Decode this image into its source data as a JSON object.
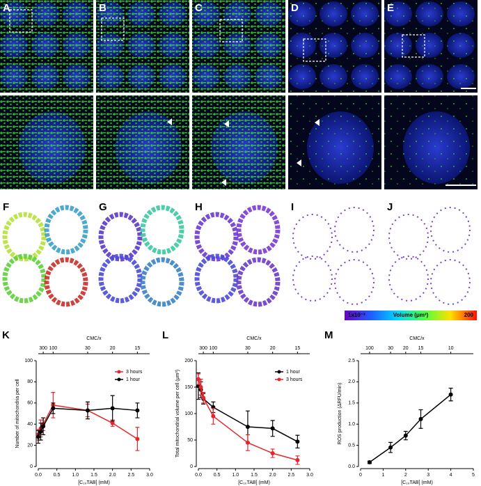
{
  "panel_labels": [
    "A",
    "B",
    "C",
    "D",
    "E",
    "F",
    "G",
    "H",
    "I",
    "J"
  ],
  "colorbar": {
    "min_label": "1x10⁻³",
    "label": "Volume (μm³)",
    "max_label": "200"
  },
  "chart_data": [
    {
      "type": "line",
      "panel": "K",
      "x_label": "[C₁₀TAB] (mM)",
      "y_label": "Number of mitochondria per cell",
      "x2_label": "CMC/x",
      "x": [
        0,
        0.067,
        0.133,
        0.4,
        1.33,
        2.0,
        2.67
      ],
      "series": [
        {
          "name": "3 hours",
          "color": "#e8262a",
          "values": [
            30,
            36,
            40,
            58,
            53,
            41,
            26
          ],
          "errors": [
            5,
            8,
            6,
            12,
            6,
            3,
            11
          ]
        },
        {
          "name": "1 hour",
          "color": "#000000",
          "values": [
            28,
            33,
            38,
            55,
            53,
            55,
            53
          ],
          "errors": [
            6,
            8,
            8,
            5,
            8,
            12,
            7
          ]
        }
      ],
      "xlim": [
        0,
        3
      ],
      "xticks": [
        {
          "value": 0,
          "label": "0.0"
        },
        0.5,
        {
          "value": 1,
          "label": "1.0"
        },
        1.5,
        {
          "value": 2,
          "label": "2.0"
        },
        2.5,
        {
          "value": 3,
          "label": "3.0"
        }
      ],
      "ylim": [
        0,
        100
      ],
      "yticks": [
        0,
        20,
        40,
        60,
        80,
        100
      ],
      "x2ticks": [
        {
          "value": 0.133,
          "label": "300"
        },
        {
          "value": 0.4,
          "label": "100"
        },
        {
          "value": 1.33,
          "label": "30"
        },
        {
          "value": 2.0,
          "label": "20"
        },
        {
          "value": 2.67,
          "label": "15"
        }
      ],
      "legend": "upper right"
    },
    {
      "type": "line",
      "panel": "L",
      "x_label": "[C₁₀TAB] (mM)",
      "y_label": "Total mitochondrial volume per cell (μm³)",
      "x2_label": "CMC/x",
      "x": [
        0,
        0.067,
        0.133,
        0.4,
        1.33,
        2.0,
        2.67
      ],
      "series": [
        {
          "name": "1 hour",
          "color": "#000000",
          "values": [
            152,
            145,
            128,
            112,
            75,
            72,
            47
          ],
          "errors": [
            25,
            15,
            10,
            10,
            30,
            15,
            12
          ]
        },
        {
          "name": "3 hours",
          "color": "#e8262a",
          "values": [
            165,
            150,
            130,
            95,
            45,
            25,
            12
          ],
          "errors": [
            10,
            15,
            10,
            15,
            15,
            8,
            8
          ]
        }
      ],
      "xlim": [
        0,
        3
      ],
      "xticks": [
        {
          "value": 0,
          "label": "0.0"
        },
        0.5,
        {
          "value": 1,
          "label": "1.0"
        },
        1.5,
        {
          "value": 2,
          "label": "2.0"
        },
        2.5,
        {
          "value": 3,
          "label": "3.0"
        }
      ],
      "ylim": [
        0,
        200
      ],
      "yticks": [
        0,
        50,
        100,
        150,
        200
      ],
      "x2ticks": [
        {
          "value": 0.133,
          "label": "300"
        },
        {
          "value": 0.4,
          "label": "100"
        },
        {
          "value": 1.33,
          "label": "30"
        },
        {
          "value": 2.0,
          "label": "20"
        },
        {
          "value": 2.67,
          "label": "15"
        }
      ],
      "legend": "upper right"
    },
    {
      "type": "line",
      "panel": "M",
      "x_label": "[C₁₀TAB] (mM)",
      "y_label": "ROS production (ΔRFU/min)",
      "x2_label": "CMC/x",
      "x": [
        0.4,
        1.33,
        2.0,
        2.67,
        4.0
      ],
      "series": [
        {
          "color": "#000000",
          "values": [
            0.1,
            0.45,
            0.73,
            1.12,
            1.7
          ],
          "errors": [
            0.03,
            0.12,
            0.1,
            0.22,
            0.15
          ]
        }
      ],
      "xlim": [
        0,
        5
      ],
      "xticks": [
        0,
        1,
        2,
        3,
        4,
        5
      ],
      "ylim": [
        0,
        2.5
      ],
      "yticks": [
        {
          "value": 0,
          "label": "0.0"
        },
        0.5,
        {
          "value": 1,
          "label": "1.0"
        },
        1.5,
        {
          "value": 2,
          "label": "2.0"
        },
        2.5
      ],
      "x2ticks": [
        {
          "value": 0.4,
          "label": "100"
        },
        {
          "value": 1.33,
          "label": "30"
        },
        {
          "value": 2.0,
          "label": "20"
        },
        {
          "value": 2.67,
          "label": "15"
        },
        {
          "value": 4.0,
          "label": "10"
        }
      ]
    }
  ]
}
